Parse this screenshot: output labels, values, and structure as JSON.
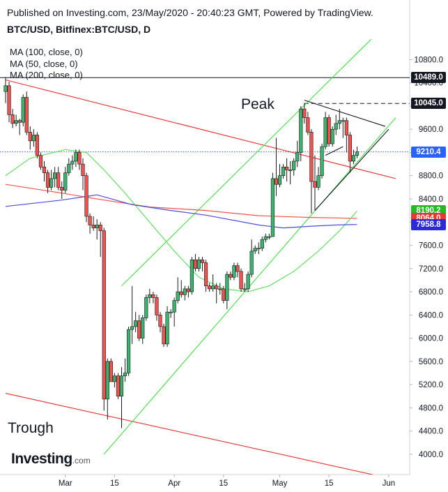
{
  "header": {
    "published": "Published on Investing.com, 23/May/2020 - 20:40:23 GMT, Powered by TradingView.",
    "symbol": "BTC/USD, Bitfinex:BTC/USD, D"
  },
  "legend": {
    "ma100": "MA (100, close, 0)",
    "ma50": "MA (50, close, 0)",
    "ma200": "MA (200, close, 0)"
  },
  "annotations": {
    "peak": "Peak",
    "trough": "Trough"
  },
  "logo": {
    "brand": "Investing",
    "suffix": ".com"
  },
  "colors": {
    "up": "#3cb371",
    "down": "#ef5350",
    "ma100": "#ef5350",
    "ma50": "#66dd66",
    "ma200": "#4b4bd6",
    "channel_red": "#e03030",
    "channel_green": "#44dd44",
    "triangle": "#131722"
  },
  "price_tags": [
    {
      "label": "10489.0",
      "value": 10489.0,
      "color": "#131722"
    },
    {
      "label": "10045.0",
      "value": 10045.0,
      "color": "#131722"
    },
    {
      "label": "9210.4",
      "value": 9210.4,
      "color": "#2962ff"
    },
    {
      "label": "8190.2",
      "value": 8190.2,
      "color": "#22bb22"
    },
    {
      "label": "8064.0",
      "value": 8064.0,
      "color": "#e53935"
    },
    {
      "label": "7958.8",
      "value": 7958.8,
      "color": "#2a2ad8"
    }
  ],
  "chart_data": {
    "type": "candlestick",
    "title": "BTC/USD, Bitfinex:BTC/USD, D",
    "ylim": [
      3650,
      11250
    ],
    "y_ticks": [
      4000,
      4400,
      4800,
      5200,
      5600,
      6000,
      6400,
      6800,
      7200,
      7600,
      8000,
      8400,
      8800,
      9200,
      9600,
      10000,
      10400,
      10800
    ],
    "y_tick_labels": [
      "4000.0",
      "4400.0",
      "4800.0",
      "5200.0",
      "5600.0",
      "6000.0",
      "6400.0",
      "6800.0",
      "7200.0",
      "7600.0",
      "8000.0",
      "8400.0",
      "8800.0",
      "9200.0",
      "9600.0",
      "10000.0",
      "10400.0",
      "10800.0"
    ],
    "x_ticks": [
      {
        "label": "Mar",
        "date": "2020-03-01"
      },
      {
        "label": "15",
        "date": "2020-03-15"
      },
      {
        "label": "Apr",
        "date": "2020-04-01"
      },
      {
        "label": "15",
        "date": "2020-04-15"
      },
      {
        "label": "May",
        "date": "2020-05-01"
      },
      {
        "label": "15",
        "date": "2020-05-15"
      },
      {
        "label": "Jun",
        "date": "2020-06-01"
      }
    ],
    "date_range": [
      "2020-02-13",
      "2020-06-03"
    ],
    "candles": [
      {
        "date": "2020-02-13",
        "o": 10250,
        "h": 10500,
        "l": 10050,
        "c": 10350
      },
      {
        "date": "2020-02-14",
        "o": 10350,
        "h": 10420,
        "l": 9720,
        "c": 9850
      },
      {
        "date": "2020-02-15",
        "o": 9850,
        "h": 9950,
        "l": 9620,
        "c": 9700
      },
      {
        "date": "2020-02-16",
        "o": 9700,
        "h": 9850,
        "l": 9650,
        "c": 9750
      },
      {
        "date": "2020-02-17",
        "o": 9750,
        "h": 9780,
        "l": 9500,
        "c": 9720
      },
      {
        "date": "2020-02-18",
        "o": 9720,
        "h": 10200,
        "l": 9650,
        "c": 10150
      },
      {
        "date": "2020-02-19",
        "o": 10150,
        "h": 10250,
        "l": 9500,
        "c": 9550
      },
      {
        "date": "2020-02-20",
        "o": 9550,
        "h": 9650,
        "l": 9250,
        "c": 9400
      },
      {
        "date": "2020-02-21",
        "o": 9400,
        "h": 9600,
        "l": 9300,
        "c": 9500
      },
      {
        "date": "2020-02-22",
        "o": 9500,
        "h": 9550,
        "l": 9100,
        "c": 9150
      },
      {
        "date": "2020-02-23",
        "o": 9150,
        "h": 9200,
        "l": 8900,
        "c": 8950
      },
      {
        "date": "2020-02-24",
        "o": 8950,
        "h": 9050,
        "l": 8700,
        "c": 8850
      },
      {
        "date": "2020-02-25",
        "o": 8850,
        "h": 8900,
        "l": 8500,
        "c": 8600
      },
      {
        "date": "2020-02-26",
        "o": 8600,
        "h": 8900,
        "l": 8550,
        "c": 8750
      },
      {
        "date": "2020-02-27",
        "o": 8750,
        "h": 8950,
        "l": 8600,
        "c": 8850
      },
      {
        "date": "2020-02-28",
        "o": 8850,
        "h": 8950,
        "l": 8550,
        "c": 8600
      },
      {
        "date": "2020-02-29",
        "o": 8600,
        "h": 8700,
        "l": 8400,
        "c": 8550
      },
      {
        "date": "2020-03-01",
        "o": 8550,
        "h": 8950,
        "l": 8500,
        "c": 8850
      },
      {
        "date": "2020-03-02",
        "o": 8850,
        "h": 9100,
        "l": 8800,
        "c": 9000
      },
      {
        "date": "2020-03-03",
        "o": 9000,
        "h": 9150,
        "l": 8900,
        "c": 9050
      },
      {
        "date": "2020-03-04",
        "o": 9050,
        "h": 9250,
        "l": 8950,
        "c": 9200
      },
      {
        "date": "2020-03-05",
        "o": 9200,
        "h": 9250,
        "l": 8900,
        "c": 9000
      },
      {
        "date": "2020-03-06",
        "o": 9000,
        "h": 9100,
        "l": 8550,
        "c": 8800
      },
      {
        "date": "2020-03-07",
        "o": 8800,
        "h": 8850,
        "l": 8000,
        "c": 8100
      },
      {
        "date": "2020-03-08",
        "o": 8100,
        "h": 8150,
        "l": 7800,
        "c": 7950
      },
      {
        "date": "2020-03-09",
        "o": 7950,
        "h": 8100,
        "l": 7850,
        "c": 7900
      },
      {
        "date": "2020-03-10",
        "o": 7900,
        "h": 8050,
        "l": 7700,
        "c": 7950
      },
      {
        "date": "2020-03-11",
        "o": 7950,
        "h": 8000,
        "l": 7400,
        "c": 7850
      },
      {
        "date": "2020-03-12",
        "o": 7850,
        "h": 7900,
        "l": 4750,
        "c": 4950
      },
      {
        "date": "2020-03-13",
        "o": 4950,
        "h": 5650,
        "l": 4600,
        "c": 5600
      },
      {
        "date": "2020-03-14",
        "o": 5600,
        "h": 5650,
        "l": 5250,
        "c": 5250
      },
      {
        "date": "2020-03-15",
        "o": 5250,
        "h": 5400,
        "l": 5150,
        "c": 5350
      },
      {
        "date": "2020-03-16",
        "o": 5350,
        "h": 5400,
        "l": 4950,
        "c": 5000
      },
      {
        "date": "2020-03-17",
        "o": 5000,
        "h": 5500,
        "l": 4450,
        "c": 5350
      },
      {
        "date": "2020-03-18",
        "o": 5350,
        "h": 5650,
        "l": 5250,
        "c": 5400
      },
      {
        "date": "2020-03-19",
        "o": 5400,
        "h": 6200,
        "l": 5350,
        "c": 6150
      },
      {
        "date": "2020-03-20",
        "o": 6150,
        "h": 6900,
        "l": 5900,
        "c": 6200
      },
      {
        "date": "2020-03-21",
        "o": 6200,
        "h": 6450,
        "l": 6100,
        "c": 6300
      },
      {
        "date": "2020-03-22",
        "o": 6300,
        "h": 6400,
        "l": 5950,
        "c": 6000
      },
      {
        "date": "2020-03-23",
        "o": 6000,
        "h": 6400,
        "l": 5900,
        "c": 6350
      },
      {
        "date": "2020-03-24",
        "o": 6350,
        "h": 6750,
        "l": 6300,
        "c": 6700
      },
      {
        "date": "2020-03-25",
        "o": 6700,
        "h": 6850,
        "l": 6600,
        "c": 6750
      },
      {
        "date": "2020-03-26",
        "o": 6750,
        "h": 6800,
        "l": 6600,
        "c": 6700
      },
      {
        "date": "2020-03-27",
        "o": 6700,
        "h": 6750,
        "l": 6300,
        "c": 6400
      },
      {
        "date": "2020-03-28",
        "o": 6400,
        "h": 6450,
        "l": 6100,
        "c": 6200
      },
      {
        "date": "2020-03-29",
        "o": 6200,
        "h": 6250,
        "l": 5850,
        "c": 5900
      },
      {
        "date": "2020-03-30",
        "o": 5900,
        "h": 6550,
        "l": 5850,
        "c": 6450
      },
      {
        "date": "2020-03-31",
        "o": 6450,
        "h": 6500,
        "l": 6350,
        "c": 6450
      },
      {
        "date": "2020-04-01",
        "o": 6450,
        "h": 6700,
        "l": 6200,
        "c": 6650
      },
      {
        "date": "2020-04-02",
        "o": 6650,
        "h": 7050,
        "l": 6600,
        "c": 6800
      },
      {
        "date": "2020-04-03",
        "o": 6800,
        "h": 7000,
        "l": 6700,
        "c": 6750
      },
      {
        "date": "2020-04-04",
        "o": 6750,
        "h": 6900,
        "l": 6650,
        "c": 6850
      },
      {
        "date": "2020-04-05",
        "o": 6850,
        "h": 6900,
        "l": 6700,
        "c": 6800
      },
      {
        "date": "2020-04-06",
        "o": 6800,
        "h": 7400,
        "l": 6750,
        "c": 7350
      },
      {
        "date": "2020-04-07",
        "o": 7350,
        "h": 7450,
        "l": 7150,
        "c": 7200
      },
      {
        "date": "2020-04-08",
        "o": 7200,
        "h": 7400,
        "l": 7150,
        "c": 7350
      },
      {
        "date": "2020-04-09",
        "o": 7350,
        "h": 7400,
        "l": 7150,
        "c": 7300
      },
      {
        "date": "2020-04-10",
        "o": 7300,
        "h": 7350,
        "l": 6800,
        "c": 6900
      },
      {
        "date": "2020-04-11",
        "o": 6900,
        "h": 6950,
        "l": 6800,
        "c": 6850
      },
      {
        "date": "2020-04-12",
        "o": 6850,
        "h": 7100,
        "l": 6800,
        "c": 6900
      },
      {
        "date": "2020-04-13",
        "o": 6900,
        "h": 6950,
        "l": 6600,
        "c": 6850
      },
      {
        "date": "2020-04-14",
        "o": 6850,
        "h": 6950,
        "l": 6750,
        "c": 6850
      },
      {
        "date": "2020-04-15",
        "o": 6850,
        "h": 6900,
        "l": 6600,
        "c": 6650
      },
      {
        "date": "2020-04-16",
        "o": 6650,
        "h": 7150,
        "l": 6500,
        "c": 7100
      },
      {
        "date": "2020-04-17",
        "o": 7100,
        "h": 7150,
        "l": 7000,
        "c": 7050
      },
      {
        "date": "2020-04-18",
        "o": 7050,
        "h": 7300,
        "l": 7000,
        "c": 7250
      },
      {
        "date": "2020-04-19",
        "o": 7250,
        "h": 7300,
        "l": 7050,
        "c": 7150
      },
      {
        "date": "2020-04-20",
        "o": 7150,
        "h": 7200,
        "l": 6800,
        "c": 6850
      },
      {
        "date": "2020-04-21",
        "o": 6850,
        "h": 6950,
        "l": 6800,
        "c": 6850
      },
      {
        "date": "2020-04-22",
        "o": 6850,
        "h": 7150,
        "l": 6800,
        "c": 7100
      },
      {
        "date": "2020-04-23",
        "o": 7100,
        "h": 7700,
        "l": 7050,
        "c": 7500
      },
      {
        "date": "2020-04-24",
        "o": 7500,
        "h": 7600,
        "l": 7450,
        "c": 7550
      },
      {
        "date": "2020-04-25",
        "o": 7550,
        "h": 7650,
        "l": 7450,
        "c": 7550
      },
      {
        "date": "2020-04-26",
        "o": 7550,
        "h": 7750,
        "l": 7500,
        "c": 7700
      },
      {
        "date": "2020-04-27",
        "o": 7700,
        "h": 7800,
        "l": 7650,
        "c": 7750
      },
      {
        "date": "2020-04-28",
        "o": 7750,
        "h": 7800,
        "l": 7700,
        "c": 7750
      },
      {
        "date": "2020-04-29",
        "o": 7750,
        "h": 8850,
        "l": 7750,
        "c": 8750
      },
      {
        "date": "2020-04-30",
        "o": 8750,
        "h": 9450,
        "l": 8450,
        "c": 8650
      },
      {
        "date": "2020-05-01",
        "o": 8650,
        "h": 9000,
        "l": 8600,
        "c": 8800
      },
      {
        "date": "2020-05-02",
        "o": 8800,
        "h": 9000,
        "l": 8750,
        "c": 8950
      },
      {
        "date": "2020-05-03",
        "o": 8950,
        "h": 9100,
        "l": 8700,
        "c": 8900
      },
      {
        "date": "2020-05-04",
        "o": 8900,
        "h": 9050,
        "l": 8650,
        "c": 8900
      },
      {
        "date": "2020-05-05",
        "o": 8900,
        "h": 9100,
        "l": 8800,
        "c": 9050
      },
      {
        "date": "2020-05-06",
        "o": 9050,
        "h": 9400,
        "l": 8950,
        "c": 9200
      },
      {
        "date": "2020-05-07",
        "o": 9200,
        "h": 10000,
        "l": 9050,
        "c": 9950
      },
      {
        "date": "2020-05-08",
        "o": 9950,
        "h": 10050,
        "l": 9700,
        "c": 9800
      },
      {
        "date": "2020-05-09",
        "o": 9800,
        "h": 9900,
        "l": 9500,
        "c": 9550
      },
      {
        "date": "2020-05-10",
        "o": 9550,
        "h": 9600,
        "l": 8150,
        "c": 8700
      },
      {
        "date": "2020-05-11",
        "o": 8700,
        "h": 9150,
        "l": 8200,
        "c": 8600
      },
      {
        "date": "2020-05-12",
        "o": 8600,
        "h": 8950,
        "l": 8550,
        "c": 8800
      },
      {
        "date": "2020-05-13",
        "o": 8800,
        "h": 9350,
        "l": 8750,
        "c": 9300
      },
      {
        "date": "2020-05-14",
        "o": 9300,
        "h": 9900,
        "l": 9250,
        "c": 9800
      },
      {
        "date": "2020-05-15",
        "o": 9800,
        "h": 9850,
        "l": 9300,
        "c": 9350
      },
      {
        "date": "2020-05-16",
        "o": 9350,
        "h": 9650,
        "l": 9300,
        "c": 9600
      },
      {
        "date": "2020-05-17",
        "o": 9600,
        "h": 9850,
        "l": 9500,
        "c": 9700
      },
      {
        "date": "2020-05-18",
        "o": 9700,
        "h": 9950,
        "l": 9600,
        "c": 9750
      },
      {
        "date": "2020-05-19",
        "o": 9750,
        "h": 9800,
        "l": 9450,
        "c": 9750
      },
      {
        "date": "2020-05-20",
        "o": 9750,
        "h": 9800,
        "l": 9200,
        "c": 9500
      },
      {
        "date": "2020-05-21",
        "o": 9500,
        "h": 9550,
        "l": 8850,
        "c": 9050
      },
      {
        "date": "2020-05-22",
        "o": 9050,
        "h": 9250,
        "l": 9000,
        "c": 9150
      },
      {
        "date": "2020-05-23",
        "o": 9150,
        "h": 9300,
        "l": 9100,
        "c": 9210
      }
    ],
    "series": [
      {
        "name": "MA (100, close, 0)",
        "color": "#ef5350",
        "points": [
          [
            "2020-02-13",
            8650
          ],
          [
            "2020-02-29",
            8500
          ],
          [
            "2020-03-12",
            8380
          ],
          [
            "2020-03-25",
            8260
          ],
          [
            "2020-04-10",
            8200
          ],
          [
            "2020-04-25",
            8110
          ],
          [
            "2020-05-10",
            8080
          ],
          [
            "2020-05-23",
            8064
          ]
        ]
      },
      {
        "name": "MA (50, close, 0)",
        "color": "#66dd66",
        "points": [
          [
            "2020-02-13",
            8800
          ],
          [
            "2020-02-20",
            9100
          ],
          [
            "2020-03-01",
            9250
          ],
          [
            "2020-03-07",
            9200
          ],
          [
            "2020-03-12",
            8900
          ],
          [
            "2020-03-18",
            8500
          ],
          [
            "2020-03-25",
            8000
          ],
          [
            "2020-04-01",
            7500
          ],
          [
            "2020-04-08",
            7050
          ],
          [
            "2020-04-15",
            6850
          ],
          [
            "2020-04-22",
            6800
          ],
          [
            "2020-04-28",
            6900
          ],
          [
            "2020-05-05",
            7150
          ],
          [
            "2020-05-12",
            7500
          ],
          [
            "2020-05-18",
            7850
          ],
          [
            "2020-05-23",
            8190
          ]
        ]
      },
      {
        "name": "MA (200, close, 0)",
        "color": "#4b4bd6",
        "points": [
          [
            "2020-02-13",
            8270
          ],
          [
            "2020-02-29",
            8380
          ],
          [
            "2020-03-10",
            8470
          ],
          [
            "2020-03-20",
            8300
          ],
          [
            "2020-03-31",
            8200
          ],
          [
            "2020-04-10",
            8120
          ],
          [
            "2020-04-25",
            7950
          ],
          [
            "2020-05-02",
            7900
          ],
          [
            "2020-05-10",
            7930
          ],
          [
            "2020-05-17",
            7950
          ],
          [
            "2020-05-23",
            7959
          ]
        ]
      }
    ],
    "horizontal_lines": [
      {
        "value": 10489.0,
        "style": "solid"
      },
      {
        "value": 10045.0,
        "style": "dashed",
        "from": "2020-05-08"
      },
      {
        "value": 9210.4,
        "style": "dotted"
      }
    ],
    "trendlines": [
      {
        "name": "red-channel-upper",
        "color": "#e03030",
        "from": [
          "2020-02-13",
          10450
        ],
        "to": [
          "2020-06-03",
          8750
        ]
      },
      {
        "name": "red-channel-lower",
        "color": "#e03030",
        "from": [
          "2020-02-13",
          5050
        ],
        "to": [
          "2020-05-31",
          3600
        ]
      },
      {
        "name": "green-channel-lower",
        "color": "#44dd44",
        "from": [
          "2020-03-12",
          4000
        ],
        "to": [
          "2020-06-03",
          9800
        ]
      },
      {
        "name": "green-channel-upper",
        "color": "#44dd44",
        "from": [
          "2020-03-17",
          6900
        ],
        "to": [
          "2020-05-27",
          11150
        ]
      },
      {
        "name": "triangle-upper",
        "color": "#131722",
        "from": [
          "2020-05-08",
          10100
        ],
        "to": [
          "2020-05-31",
          9650
        ]
      },
      {
        "name": "triangle-lower",
        "color": "#131722",
        "from": [
          "2020-05-11",
          8200
        ],
        "to": [
          "2020-06-01",
          9600
        ]
      },
      {
        "name": "wedge-top",
        "color": "#131722",
        "from": [
          "2020-05-14",
          9150
        ],
        "to": [
          "2020-05-19",
          9300
        ]
      }
    ]
  }
}
